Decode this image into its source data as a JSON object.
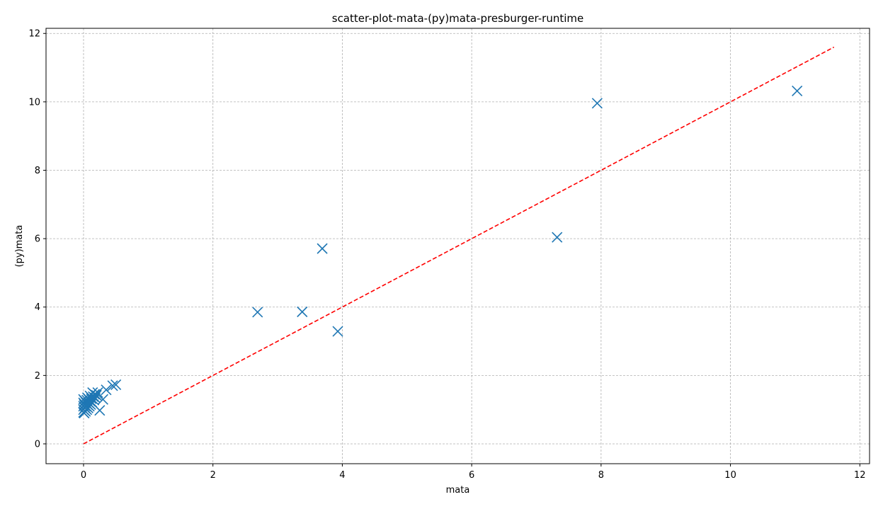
{
  "chart_data": {
    "type": "scatter",
    "title": "scatter-plot-mata-(py)mata-presburger-runtime",
    "xlabel": "mata",
    "ylabel": "(py)mata",
    "xlim": [
      -0.58,
      12.15
    ],
    "ylim": [
      -0.58,
      12.15
    ],
    "xticks": [
      0,
      2,
      4,
      6,
      8,
      10,
      12
    ],
    "yticks": [
      0,
      2,
      4,
      6,
      8,
      10,
      12
    ],
    "xtick_labels": [
      "0",
      "2",
      "4",
      "6",
      "8",
      "10",
      "12"
    ],
    "ytick_labels": [
      "0",
      "2",
      "4",
      "6",
      "8",
      "10",
      "12"
    ],
    "grid": true,
    "marker": "x",
    "colors": {
      "points": "#1f77b4",
      "reference_line": "#ff0000",
      "grid": "#b0b0b0"
    },
    "reference_line": {
      "style": "dashed",
      "x": [
        0,
        11.6
      ],
      "y": [
        0,
        11.6
      ]
    },
    "series": [
      {
        "x": [
          11.03,
          7.94,
          7.32,
          3.69,
          3.38,
          3.93,
          2.69,
          0.5,
          0.45,
          0.35,
          0.3,
          0.25,
          0.22,
          0.2,
          0.18,
          0.17,
          0.16,
          0.15,
          0.14,
          0.13,
          0.12,
          0.11,
          0.1,
          0.1,
          0.09,
          0.08,
          0.08,
          0.07,
          0.06,
          0.06,
          0.05,
          0.05,
          0.04,
          0.03,
          0.03,
          0.02,
          0.02,
          0.01,
          0.01,
          0.0,
          0.0,
          0.0,
          0.0,
          0.0
        ],
        "y": [
          10.32,
          9.96,
          6.04,
          5.71,
          3.86,
          3.29,
          3.85,
          1.73,
          1.7,
          1.58,
          1.3,
          0.98,
          1.5,
          1.42,
          1.35,
          1.45,
          1.28,
          1.38,
          1.5,
          1.22,
          1.32,
          1.15,
          1.4,
          1.25,
          1.1,
          1.3,
          1.2,
          1.05,
          1.35,
          1.15,
          1.28,
          1.0,
          1.2,
          1.1,
          0.95,
          1.25,
          1.05,
          1.15,
          0.9,
          1.3,
          1.2,
          1.1,
          1.0,
          0.92
        ]
      }
    ]
  }
}
